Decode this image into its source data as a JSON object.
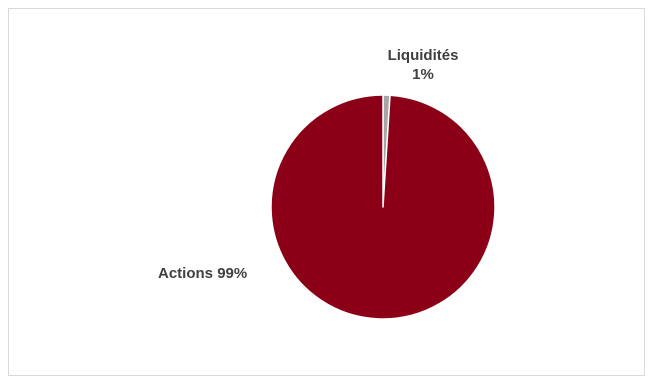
{
  "chart_data": {
    "type": "pie",
    "title": "",
    "start_angle_deg": 0,
    "slices": [
      {
        "name": "Liquidités",
        "value": 1,
        "label": "1%",
        "color": "#a6a6a6"
      },
      {
        "name": "Actions",
        "value": 99,
        "label": "99%",
        "color": "#8b0016"
      }
    ],
    "slice_border_color": "#ffffff",
    "legend": "none"
  }
}
